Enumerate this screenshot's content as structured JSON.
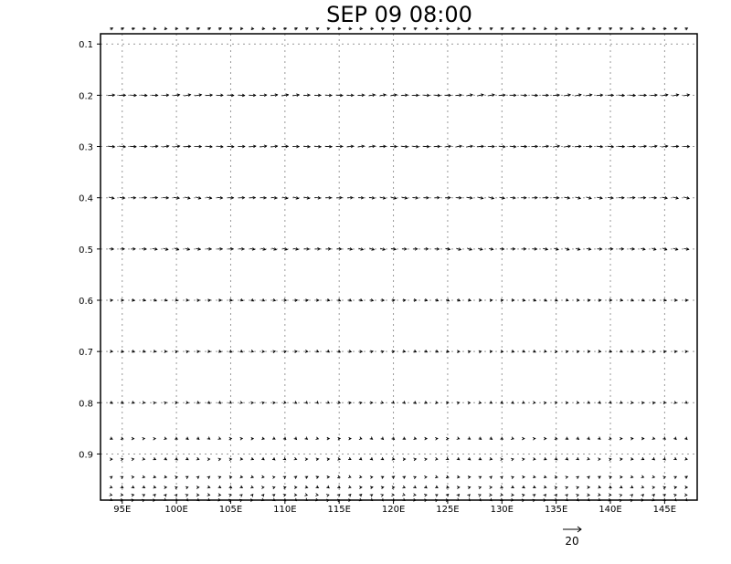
{
  "chart_data": {
    "type": "vector",
    "title": "SEP 09 08:00",
    "xlabel": "",
    "ylabel": "",
    "x_tick_labels": [
      "95E",
      "100E",
      "105E",
      "110E",
      "115E",
      "120E",
      "125E",
      "130E",
      "135E",
      "140E",
      "145E"
    ],
    "x_ticks": [
      95,
      100,
      105,
      110,
      115,
      120,
      125,
      130,
      135,
      140,
      145
    ],
    "y_tick_labels": [
      "0.1",
      "0.2",
      "0.3",
      "0.4",
      "0.5",
      "0.6",
      "0.7",
      "0.8",
      "0.9"
    ],
    "y_ticks": [
      0.1,
      0.2,
      0.3,
      0.4,
      0.5,
      0.6,
      0.7,
      0.8,
      0.9
    ],
    "xlim": [
      93,
      148
    ],
    "ylim": [
      0.08,
      0.99
    ],
    "grid": true,
    "reference_vector": {
      "label": "20",
      "magnitude": 20
    },
    "levels": [
      0.07,
      0.2,
      0.3,
      0.4,
      0.5,
      0.6,
      0.7,
      0.8,
      0.87,
      0.91,
      0.945,
      0.965,
      0.98,
      0.99
    ],
    "lon_start": 94,
    "lon_step": 1,
    "lon_count": 54,
    "pattern_by_level": [
      {
        "u": 6,
        "v": 0.3
      },
      {
        "u": 14,
        "v": 0.2
      },
      {
        "u": 14,
        "v": 0.1
      },
      {
        "u": 12,
        "v": -0.3
      },
      {
        "u": 10,
        "v": -0.4
      },
      {
        "u": 6,
        "v": -0.3
      },
      {
        "u": 5,
        "v": -0.2
      },
      {
        "u": 4,
        "v": -0.3
      },
      {
        "u": 4,
        "v": -0.4
      },
      {
        "u": 4,
        "v": -0.3
      },
      {
        "u": 4,
        "v": 0.2
      },
      {
        "u": 4,
        "v": -0.2
      },
      {
        "u": 3,
        "v": 0.3
      },
      {
        "u": 3,
        "v": -0.3
      }
    ]
  }
}
